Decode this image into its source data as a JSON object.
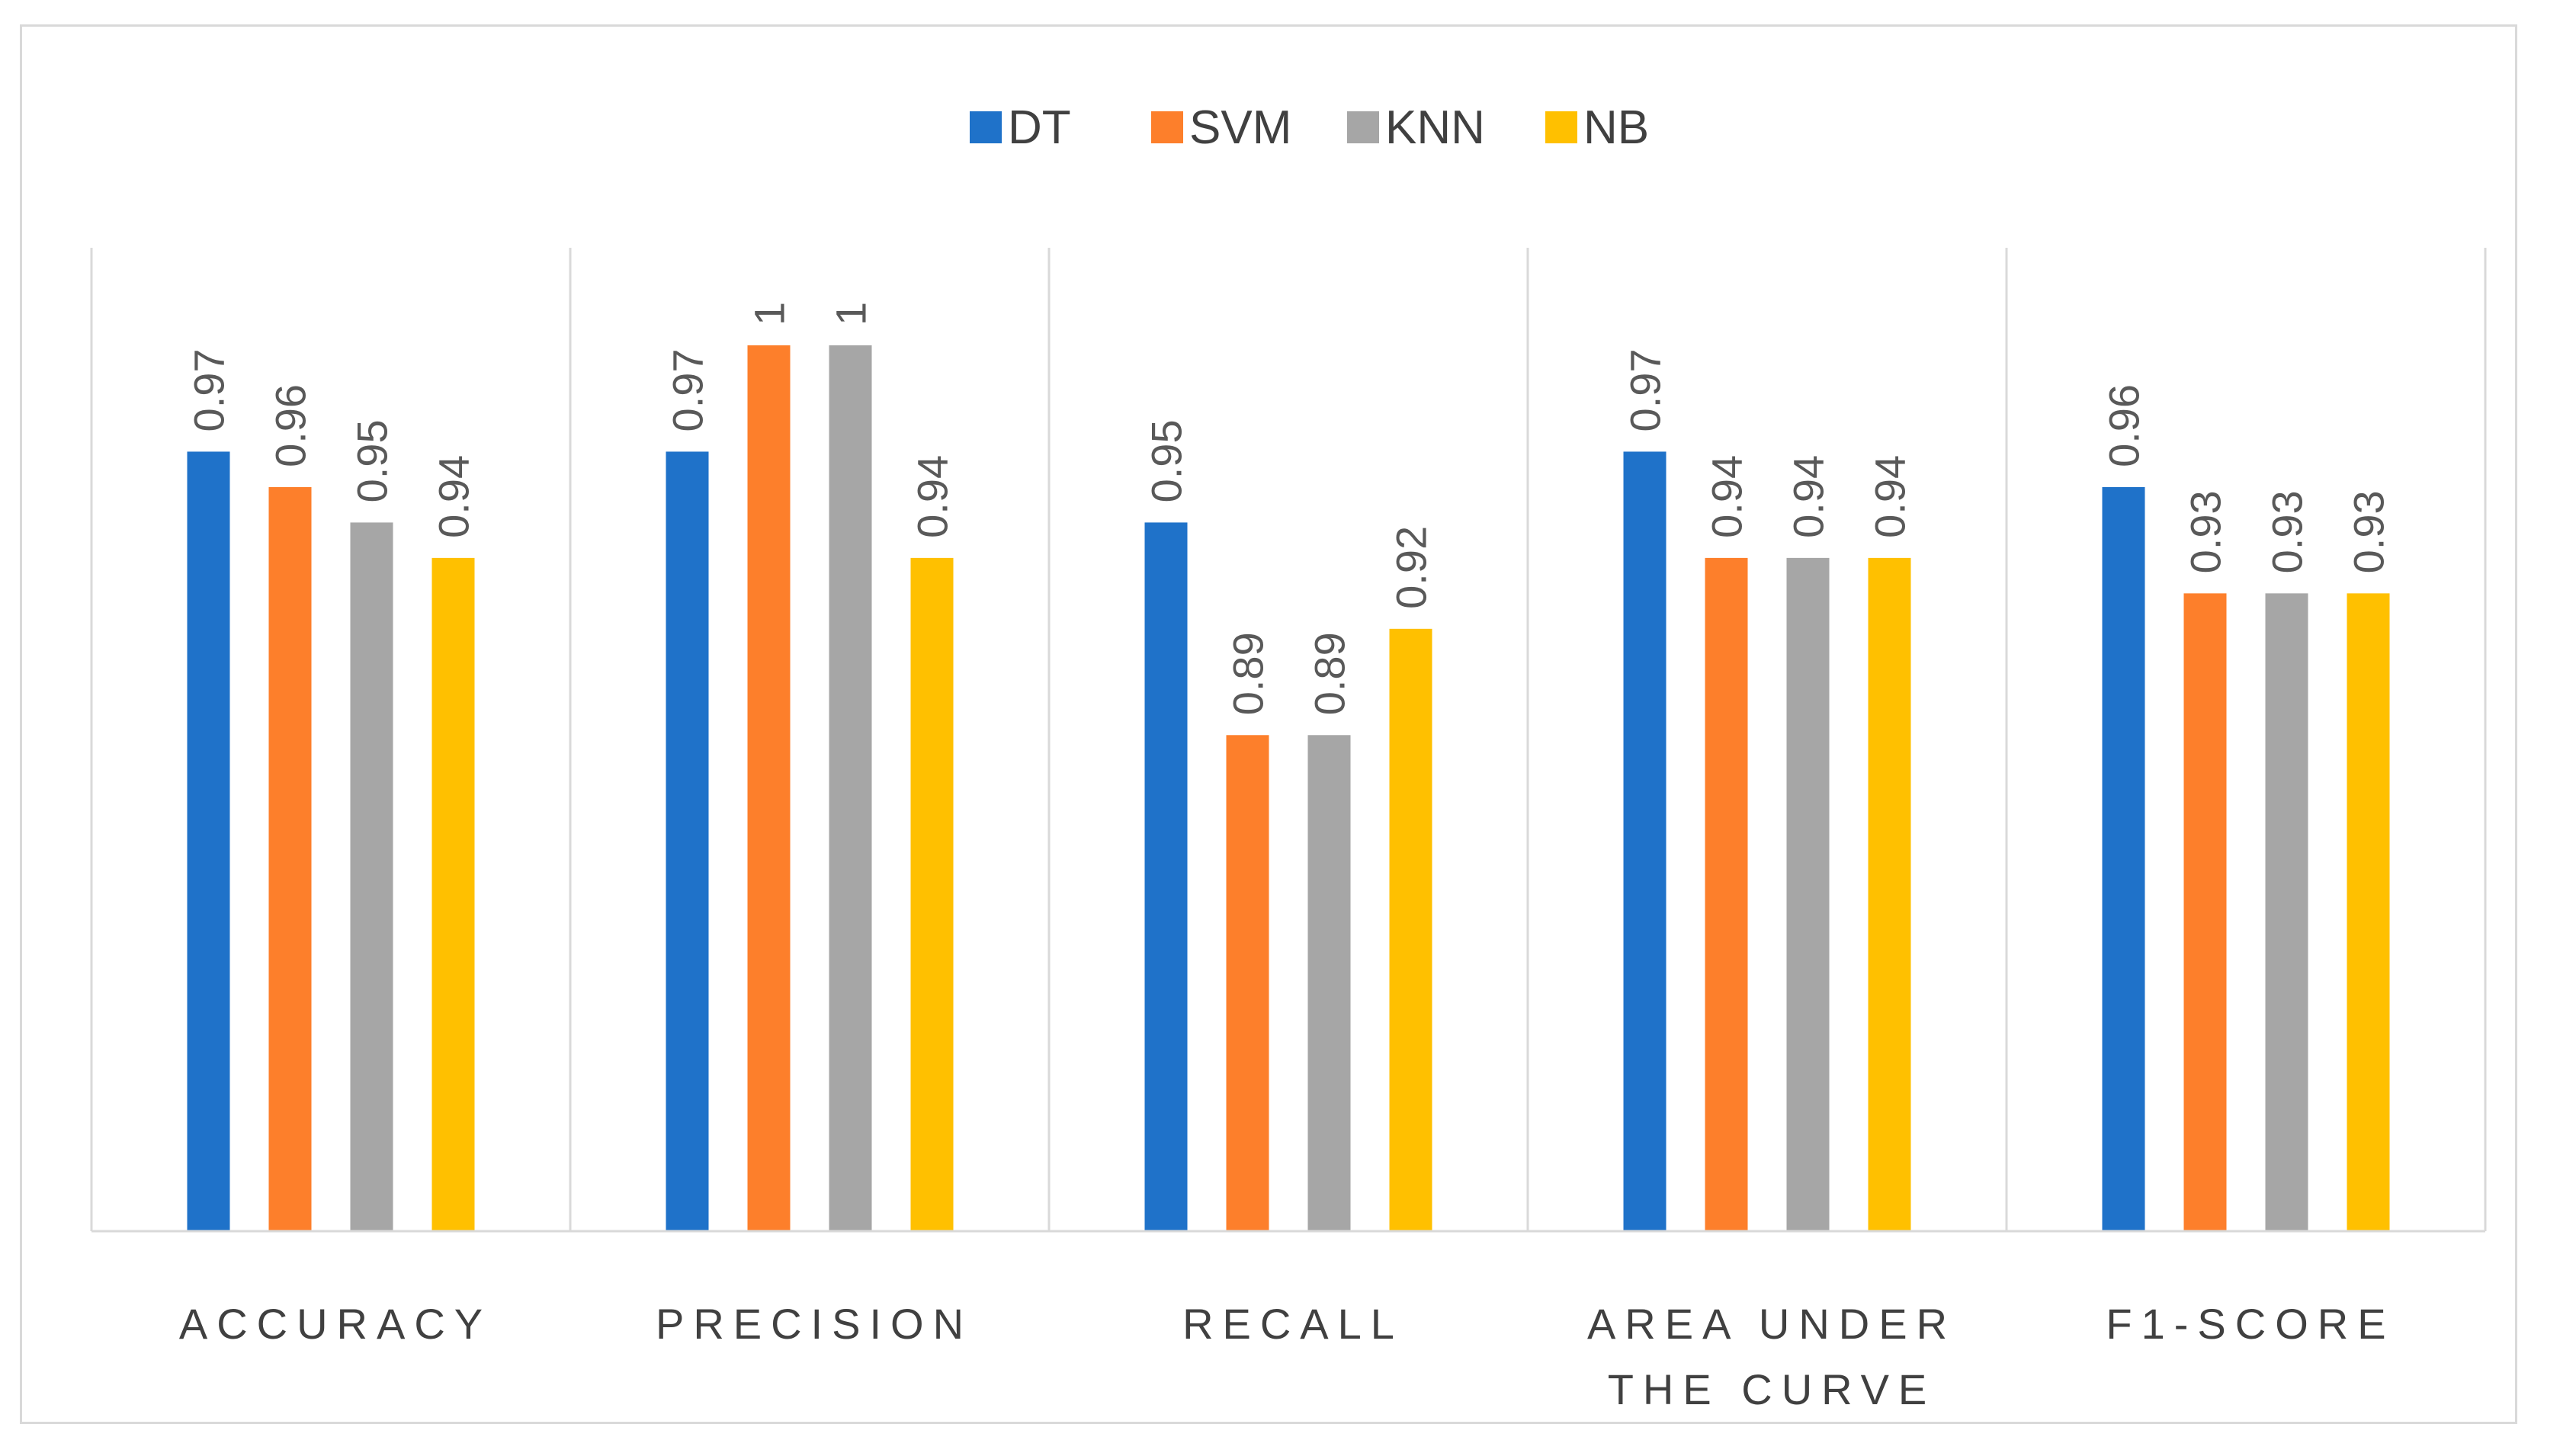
{
  "chart_data": {
    "type": "bar",
    "title": "",
    "xlabel": "",
    "ylabel": "",
    "ylim": [
      0.75,
      1.02
    ],
    "grid": false,
    "legend_position": "top-center",
    "categories": [
      [
        "ACCURACY"
      ],
      [
        "PRECISION"
      ],
      [
        "RECALL"
      ],
      [
        "AREA UNDER",
        "THE CURVE"
      ],
      [
        "F1-SCORE"
      ]
    ],
    "series": [
      {
        "name": "DT",
        "color": "#1f72c9",
        "values": [
          0.97,
          0.97,
          0.95,
          0.97,
          0.96
        ],
        "labels": [
          "0.97",
          "0.97",
          "0.95",
          "0.97",
          "0.96"
        ]
      },
      {
        "name": "SVM",
        "color": "#fd7f2b",
        "values": [
          0.96,
          1,
          0.89,
          0.94,
          0.93
        ],
        "labels": [
          "0.96",
          "1",
          "0.89",
          "0.94",
          "0.93"
        ]
      },
      {
        "name": "KNN",
        "color": "#a6a6a6",
        "values": [
          0.95,
          1,
          0.89,
          0.94,
          0.93
        ],
        "labels": [
          "0.95",
          "1",
          "0.89",
          "0.94",
          "0.93"
        ]
      },
      {
        "name": "NB",
        "color": "#ffc000",
        "values": [
          0.94,
          0.94,
          0.92,
          0.94,
          0.93
        ],
        "labels": [
          "0.94",
          "0.94",
          "0.92",
          "0.94",
          "0.93"
        ]
      }
    ]
  }
}
